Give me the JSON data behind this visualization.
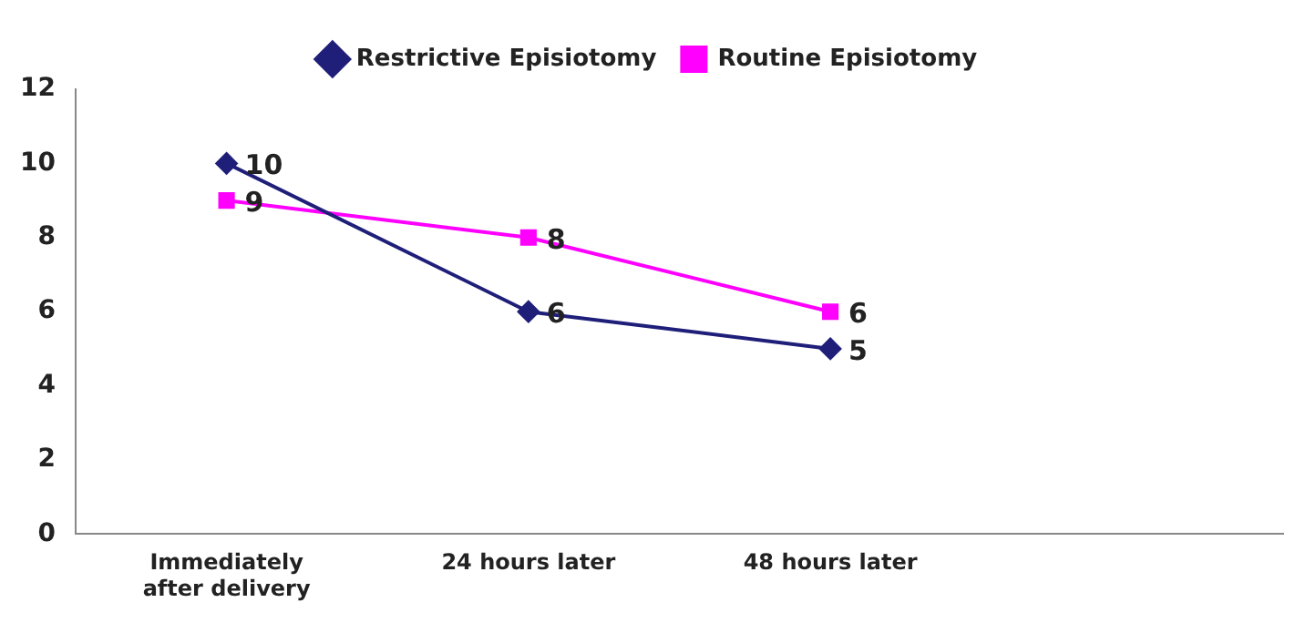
{
  "chart_data": {
    "type": "line",
    "categories": [
      "Immediately after delivery",
      "24 hours later",
      "48 hours later",
      null
    ],
    "series": [
      {
        "name": "Restrictive Episiotomy",
        "color": "#1f1f7a",
        "marker": "diamond",
        "values": [
          10,
          6,
          5,
          null
        ]
      },
      {
        "name": "Routine Episiotomy",
        "color": "#ff00ff",
        "marker": "square",
        "values": [
          9,
          8,
          6,
          null
        ]
      }
    ],
    "ylim": [
      0,
      12
    ],
    "yticks": [
      0,
      2,
      4,
      6,
      8,
      10,
      12
    ],
    "grid": false,
    "legend": "top",
    "data_labels": true
  }
}
